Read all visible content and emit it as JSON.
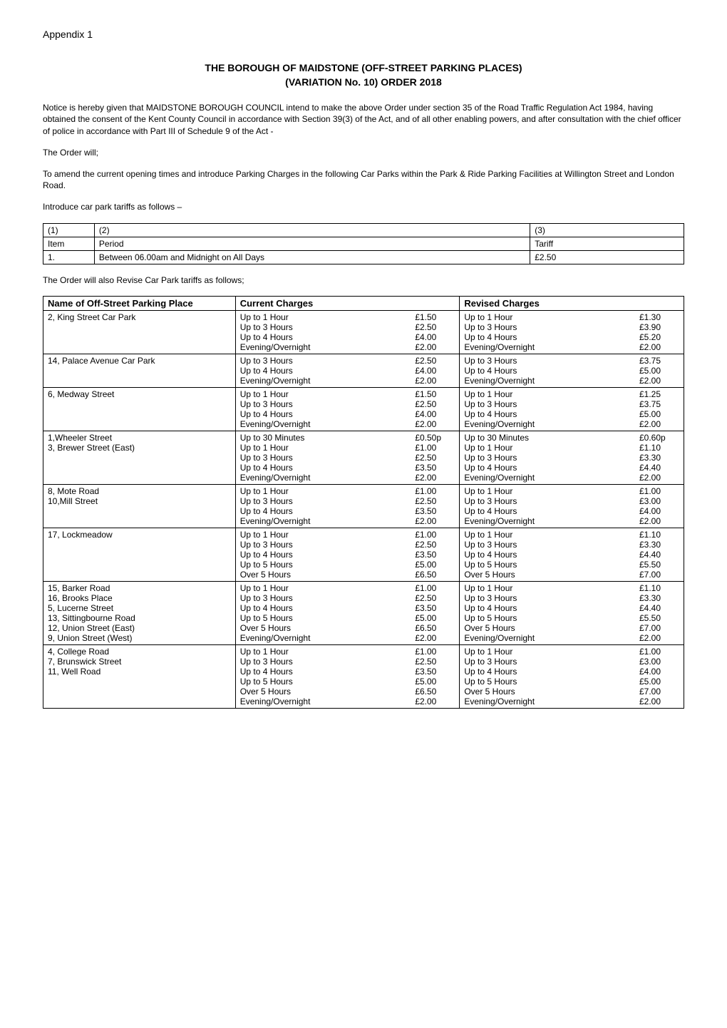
{
  "appendix": "Appendix 1",
  "title_line1": "THE BOROUGH OF MAIDSTONE  (OFF-STREET PARKING PLACES)",
  "title_line2": "(VARIATION No. 10) ORDER 2018",
  "para1": "Notice is hereby given that MAIDSTONE BOROUGH COUNCIL intend to make the above Order under section 35 of the Road Traffic Regulation Act 1984, having obtained the consent of the Kent County Council in accordance with Section 39(3) of the Act, and of all other enabling powers, and after consultation with the chief officer of police in accordance with Part III of Schedule 9 of the Act -",
  "para2": "The Order will;",
  "para3": "To amend the current opening times and introduce Parking Charges in the following Car Parks within the Park & Ride Parking Facilities at Willington Street and London Road.",
  "para4": "Introduce car park tariffs as follows –",
  "small_table": {
    "head": {
      "c1": "(1)",
      "c2": "(2)",
      "c3": "(3)"
    },
    "row2": {
      "c1": "Item",
      "c2": "Period",
      "c3": "Tariff"
    },
    "row3": {
      "c1": "1.",
      "c2": "Between 06.00am and Midnight on All Days",
      "c3": "£2.50"
    }
  },
  "para5": "The Order will also Revise Car Park tariffs as follows;",
  "main_table": {
    "headers": {
      "name": "Name of Off-Street Parking Place",
      "current": "Current Charges",
      "revised": "Revised Charges"
    },
    "rows": [
      {
        "name": "2, King Street Car Park",
        "current": [
          {
            "l": "Up to 1 Hour",
            "p": "£1.50"
          },
          {
            "l": "Up to 3 Hours",
            "p": "£2.50"
          },
          {
            "l": "Up to 4 Hours",
            "p": "£4.00"
          },
          {
            "l": "Evening/Overnight",
            "p": "£2.00"
          }
        ],
        "revised": [
          {
            "l": "Up to 1 Hour",
            "p": "£1.30"
          },
          {
            "l": "Up to 3 Hours",
            "p": "£3.90"
          },
          {
            "l": "Up to 4 Hours",
            "p": "£5.20"
          },
          {
            "l": "Evening/Overnight",
            "p": "£2.00"
          }
        ]
      },
      {
        "name": "14, Palace Avenue Car Park",
        "current": [
          {
            "l": "Up to 3 Hours",
            "p": "£2.50"
          },
          {
            "l": "Up to 4 Hours",
            "p": "£4.00"
          },
          {
            "l": "Evening/Overnight",
            "p": "£2.00"
          }
        ],
        "revised": [
          {
            "l": "Up to 3 Hours",
            "p": "£3.75"
          },
          {
            "l": "Up to 4 Hours",
            "p": "£5.00"
          },
          {
            "l": "Evening/Overnight",
            "p": "£2.00"
          }
        ]
      },
      {
        "name": "6, Medway Street",
        "current": [
          {
            "l": "Up to 1 Hour",
            "p": "£1.50"
          },
          {
            "l": "Up to 3 Hours",
            "p": "£2.50"
          },
          {
            "l": "Up to 4 Hours",
            "p": "£4.00"
          },
          {
            "l": "Evening/Overnight",
            "p": "£2.00"
          }
        ],
        "revised": [
          {
            "l": "Up to 1 Hour",
            "p": "£1.25"
          },
          {
            "l": "Up to 3 Hours",
            "p": "£3.75"
          },
          {
            "l": "Up to 4 Hours",
            "p": "£5.00"
          },
          {
            "l": "Evening/Overnight",
            "p": "£2.00"
          }
        ]
      },
      {
        "name": "1,Wheeler Street\n3, Brewer Street (East)",
        "current": [
          {
            "l": "Up to 30 Minutes",
            "p": "£0.50p"
          },
          {
            "l": "Up to 1 Hour",
            "p": "£1.00"
          },
          {
            "l": "Up to 3 Hours",
            "p": "£2.50"
          },
          {
            "l": "Up to 4 Hours",
            "p": "£3.50"
          },
          {
            "l": "Evening/Overnight",
            "p": "£2.00"
          }
        ],
        "revised": [
          {
            "l": "Up to 30 Minutes",
            "p": "£0.60p"
          },
          {
            "l": "Up to 1 Hour",
            "p": "£1.10"
          },
          {
            "l": "Up to 3 Hours",
            "p": "£3.30"
          },
          {
            "l": "Up to 4 Hours",
            "p": "£4.40"
          },
          {
            "l": "Evening/Overnight",
            "p": "£2.00"
          }
        ]
      },
      {
        "name": "8, Mote Road\n10,Mill Street",
        "current": [
          {
            "l": "Up to 1 Hour",
            "p": "£1.00"
          },
          {
            "l": "Up to 3 Hours",
            "p": "£2.50"
          },
          {
            "l": "Up to 4 Hours",
            "p": "£3.50"
          },
          {
            "l": "Evening/Overnight",
            "p": "£2.00"
          }
        ],
        "revised": [
          {
            "l": "Up to 1 Hour",
            "p": "£1.00"
          },
          {
            "l": "Up to 3 Hours",
            "p": "£3.00"
          },
          {
            "l": "Up to 4 Hours",
            "p": "£4.00"
          },
          {
            "l": "Evening/Overnight",
            "p": "£2.00"
          }
        ]
      },
      {
        "name": "17, Lockmeadow",
        "current": [
          {
            "l": "Up to 1 Hour",
            "p": "£1.00"
          },
          {
            "l": "Up to 3 Hours",
            "p": "£2.50"
          },
          {
            "l": "Up to 4 Hours",
            "p": "£3.50"
          },
          {
            "l": "Up to 5 Hours",
            "p": "£5.00"
          },
          {
            "l": "Over 5 Hours",
            "p": "£6.50"
          }
        ],
        "revised": [
          {
            "l": "Up to 1 Hour",
            "p": "£1.10"
          },
          {
            "l": "Up to 3 Hours",
            "p": "£3.30"
          },
          {
            "l": "Up to 4 Hours",
            "p": "£4.40"
          },
          {
            "l": "Up to 5 Hours",
            "p": "£5.50"
          },
          {
            "l": "Over 5 Hours",
            "p": "£7.00"
          }
        ]
      },
      {
        "name": "15, Barker Road\n16, Brooks Place\n  5, Lucerne Street\n13, Sittingbourne Road\n12, Union Street (East)\n 9,  Union Street (West)",
        "current": [
          {
            "l": "Up to 1 Hour",
            "p": "£1.00"
          },
          {
            "l": "Up to 3 Hours",
            "p": "£2.50"
          },
          {
            "l": "Up to 4 Hours",
            "p": "£3.50"
          },
          {
            "l": "Up to 5 Hours",
            "p": "£5.00"
          },
          {
            "l": "Over 5 Hours",
            "p": "£6.50"
          },
          {
            "l": "Evening/Overnight",
            "p": "£2.00"
          },
          {
            "l": "",
            "p": ""
          }
        ],
        "revised": [
          {
            "l": "Up to 1 Hour",
            "p": "£1.10"
          },
          {
            "l": "Up to 3 Hours",
            "p": "£3.30"
          },
          {
            "l": "Up to 4 Hours",
            "p": "£4.40"
          },
          {
            "l": "Up to 5 Hours",
            "p": "£5.50"
          },
          {
            "l": "Over 5 Hours",
            "p": "£7.00"
          },
          {
            "l": "Evening/Overnight",
            "p": "£2.00"
          },
          {
            "l": "",
            "p": ""
          }
        ]
      },
      {
        "name": "4,  College Road\n7,  Brunswick Street\n11, Well Road",
        "current": [
          {
            "l": "Up to 1 Hour",
            "p": "£1.00"
          },
          {
            "l": "Up to 3 Hours",
            "p": "£2.50"
          },
          {
            "l": "Up to 4 Hours",
            "p": "£3.50"
          },
          {
            "l": "Up to 5 Hours",
            "p": "£5.00"
          },
          {
            "l": "Over 5 Hours",
            "p": "£6.50"
          },
          {
            "l": "Evening/Overnight",
            "p": "£2.00"
          }
        ],
        "revised": [
          {
            "l": "Up to 1 Hour",
            "p": "£1.00"
          },
          {
            "l": "Up to 3 Hours",
            "p": "£3.00"
          },
          {
            "l": "Up to 4 Hours",
            "p": "£4.00"
          },
          {
            "l": "Up to 5 Hours",
            "p": "£5.00"
          },
          {
            "l": "Over 5 Hours",
            "p": "£7.00"
          },
          {
            "l": "Evening/Overnight",
            "p": "£2.00"
          }
        ]
      }
    ]
  }
}
